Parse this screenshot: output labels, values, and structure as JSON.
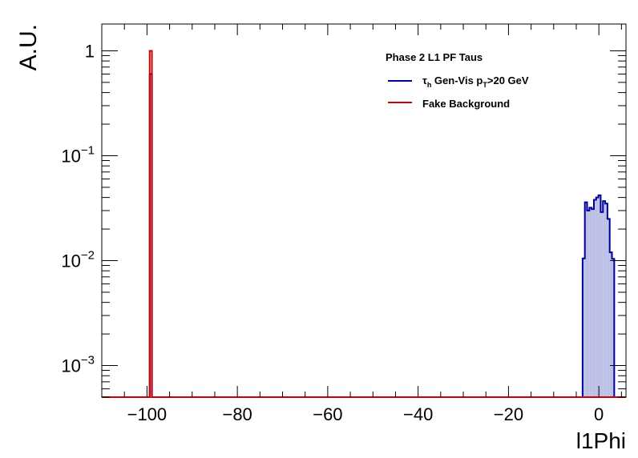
{
  "chart_data": {
    "type": "histogram",
    "ylabel": "A.U.",
    "xlabel": "l1Phi",
    "xlim": [
      -110,
      6
    ],
    "ylim": [
      0.0005,
      1.8
    ],
    "yscale": "log",
    "x_ticks": [
      -100,
      -80,
      -60,
      -40,
      -20,
      0
    ],
    "x_tick_labels": [
      "−100",
      "−80",
      "−60",
      "−40",
      "−20",
      "0"
    ],
    "y_ticks": [
      {
        "value": 1,
        "base": "1",
        "exp": ""
      },
      {
        "value": 0.1,
        "base": "10",
        "exp": "−1"
      },
      {
        "value": 0.01,
        "base": "10",
        "exp": "−2"
      },
      {
        "value": 0.001,
        "base": "10",
        "exp": "−3"
      }
    ],
    "legend": {
      "title": "Phase 2 L1 PF Taus",
      "placement": "top-right",
      "entries": [
        {
          "tau": "τ",
          "tau_sub": "h",
          "main": " Gen-Vis p",
          "p_sub": "T",
          "tail": ">20 GeV",
          "color": "#000099"
        },
        {
          "text": "Fake Background",
          "color": "#cc0000"
        }
      ]
    },
    "series": [
      {
        "name": "τh Gen-Vis pT>20 GeV",
        "color": "#000099",
        "fill": "#bcc0e6",
        "bins": [
          {
            "x0": -99.4,
            "x1": -98.9,
            "y": 0.6
          },
          {
            "x0": -3.6,
            "x1": -3.1,
            "y": 0.0105
          },
          {
            "x0": -3.1,
            "x1": -2.6,
            "y": 0.036
          },
          {
            "x0": -2.6,
            "x1": -2.1,
            "y": 0.03
          },
          {
            "x0": -2.1,
            "x1": -1.6,
            "y": 0.032
          },
          {
            "x0": -1.6,
            "x1": -1.1,
            "y": 0.031
          },
          {
            "x0": -1.1,
            "x1": -0.6,
            "y": 0.038
          },
          {
            "x0": -0.6,
            "x1": -0.1,
            "y": 0.04
          },
          {
            "x0": -0.1,
            "x1": 0.4,
            "y": 0.042
          },
          {
            "x0": 0.4,
            "x1": 0.9,
            "y": 0.029
          },
          {
            "x0": 0.9,
            "x1": 1.4,
            "y": 0.037
          },
          {
            "x0": 1.4,
            "x1": 1.9,
            "y": 0.035
          },
          {
            "x0": 1.9,
            "x1": 2.4,
            "y": 0.025
          },
          {
            "x0": 2.4,
            "x1": 2.9,
            "y": 0.012
          },
          {
            "x0": 2.9,
            "x1": 3.4,
            "y": 0.0104
          }
        ]
      },
      {
        "name": "Fake Background",
        "color": "#cc0000",
        "bins": [
          {
            "x0": -99.4,
            "x1": -98.9,
            "y": 1.0
          }
        ]
      }
    ]
  }
}
